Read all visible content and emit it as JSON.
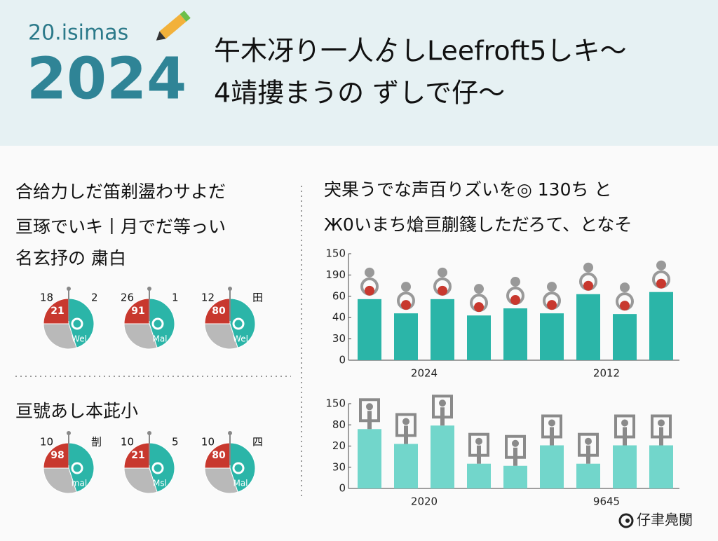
{
  "header": {
    "subtitle": "20.isimas",
    "year": "2024",
    "title_lines": [
      "午木冴り一人ゟしLeefroft5しキ〜",
      "4靖摟まうの ずしで仔〜"
    ]
  },
  "left": {
    "pie_colors": [
      "#2bb5a8",
      "#b9b9b9",
      "#c8382e"
    ],
    "sections": [
      {
        "text_lines": [
          "合给力しだ笛剃盪わサよだ",
          "亘琢でいキ丨月でだ等っい",
          "名玄抒の 粛白"
        ],
        "pies": [
          {
            "labels": [
              "18",
              "2"
            ],
            "inner": "21",
            "tag": "Wel",
            "slices": [
              45,
              30,
              25
            ]
          },
          {
            "labels": [
              "26",
              "1"
            ],
            "inner": "91",
            "tag": "Mal",
            "slices": [
              45,
              30,
              25
            ]
          },
          {
            "labels": [
              "12",
              "田"
            ],
            "inner": "80",
            "tag": "Wel",
            "slices": [
              45,
              30,
              25
            ]
          }
        ]
      },
      {
        "text_lines": [
          "亘號あし本茈小"
        ],
        "pies": [
          {
            "labels": [
              "10",
              "剒"
            ],
            "inner": "98",
            "tag": "mal",
            "slices": [
              45,
              30,
              25
            ]
          },
          {
            "labels": [
              "10",
              "5"
            ],
            "inner": "21",
            "tag": "Msl",
            "slices": [
              45,
              30,
              25
            ]
          },
          {
            "labels": [
              "10",
              "四"
            ],
            "inner": "80",
            "tag": "Mal",
            "slices": [
              45,
              30,
              25
            ]
          }
        ]
      }
    ]
  },
  "chart_data": [
    {
      "type": "bar",
      "title_lines": [
        "宊果うでな声百りズいを◎ 130ち と",
        "Ж0いまち熗亘蒯籛しただろて、となそ"
      ],
      "categories": [
        null,
        "2024",
        null,
        null,
        null,
        null,
        "2012",
        null,
        null
      ],
      "values": [
        86,
        66,
        86,
        63,
        73,
        66,
        93,
        65,
        96
      ],
      "color": "#2bb5a8",
      "ylim": [
        0,
        150
      ],
      "yticks": [
        0,
        30,
        {
          "value": 60,
          "label": "40"
        },
        {
          "value": 90,
          "label": "60"
        },
        {
          "value": 120,
          "label": "190"
        },
        150
      ]
    },
    {
      "type": "bar",
      "categories": [
        null,
        "2020",
        null,
        null,
        null,
        null,
        "9645",
        null,
        null
      ],
      "values": [
        84,
        63,
        89,
        35,
        32,
        61,
        35,
        61,
        61
      ],
      "color": "#72d6cb",
      "ylim": [
        0,
        120
      ],
      "yticks": [
        0,
        30,
        {
          "value": 60,
          "label": "20"
        },
        {
          "value": 90,
          "label": "80"
        },
        {
          "value": 120,
          "label": "150"
        }
      ]
    }
  ],
  "footer": "仔聿鳧闃"
}
